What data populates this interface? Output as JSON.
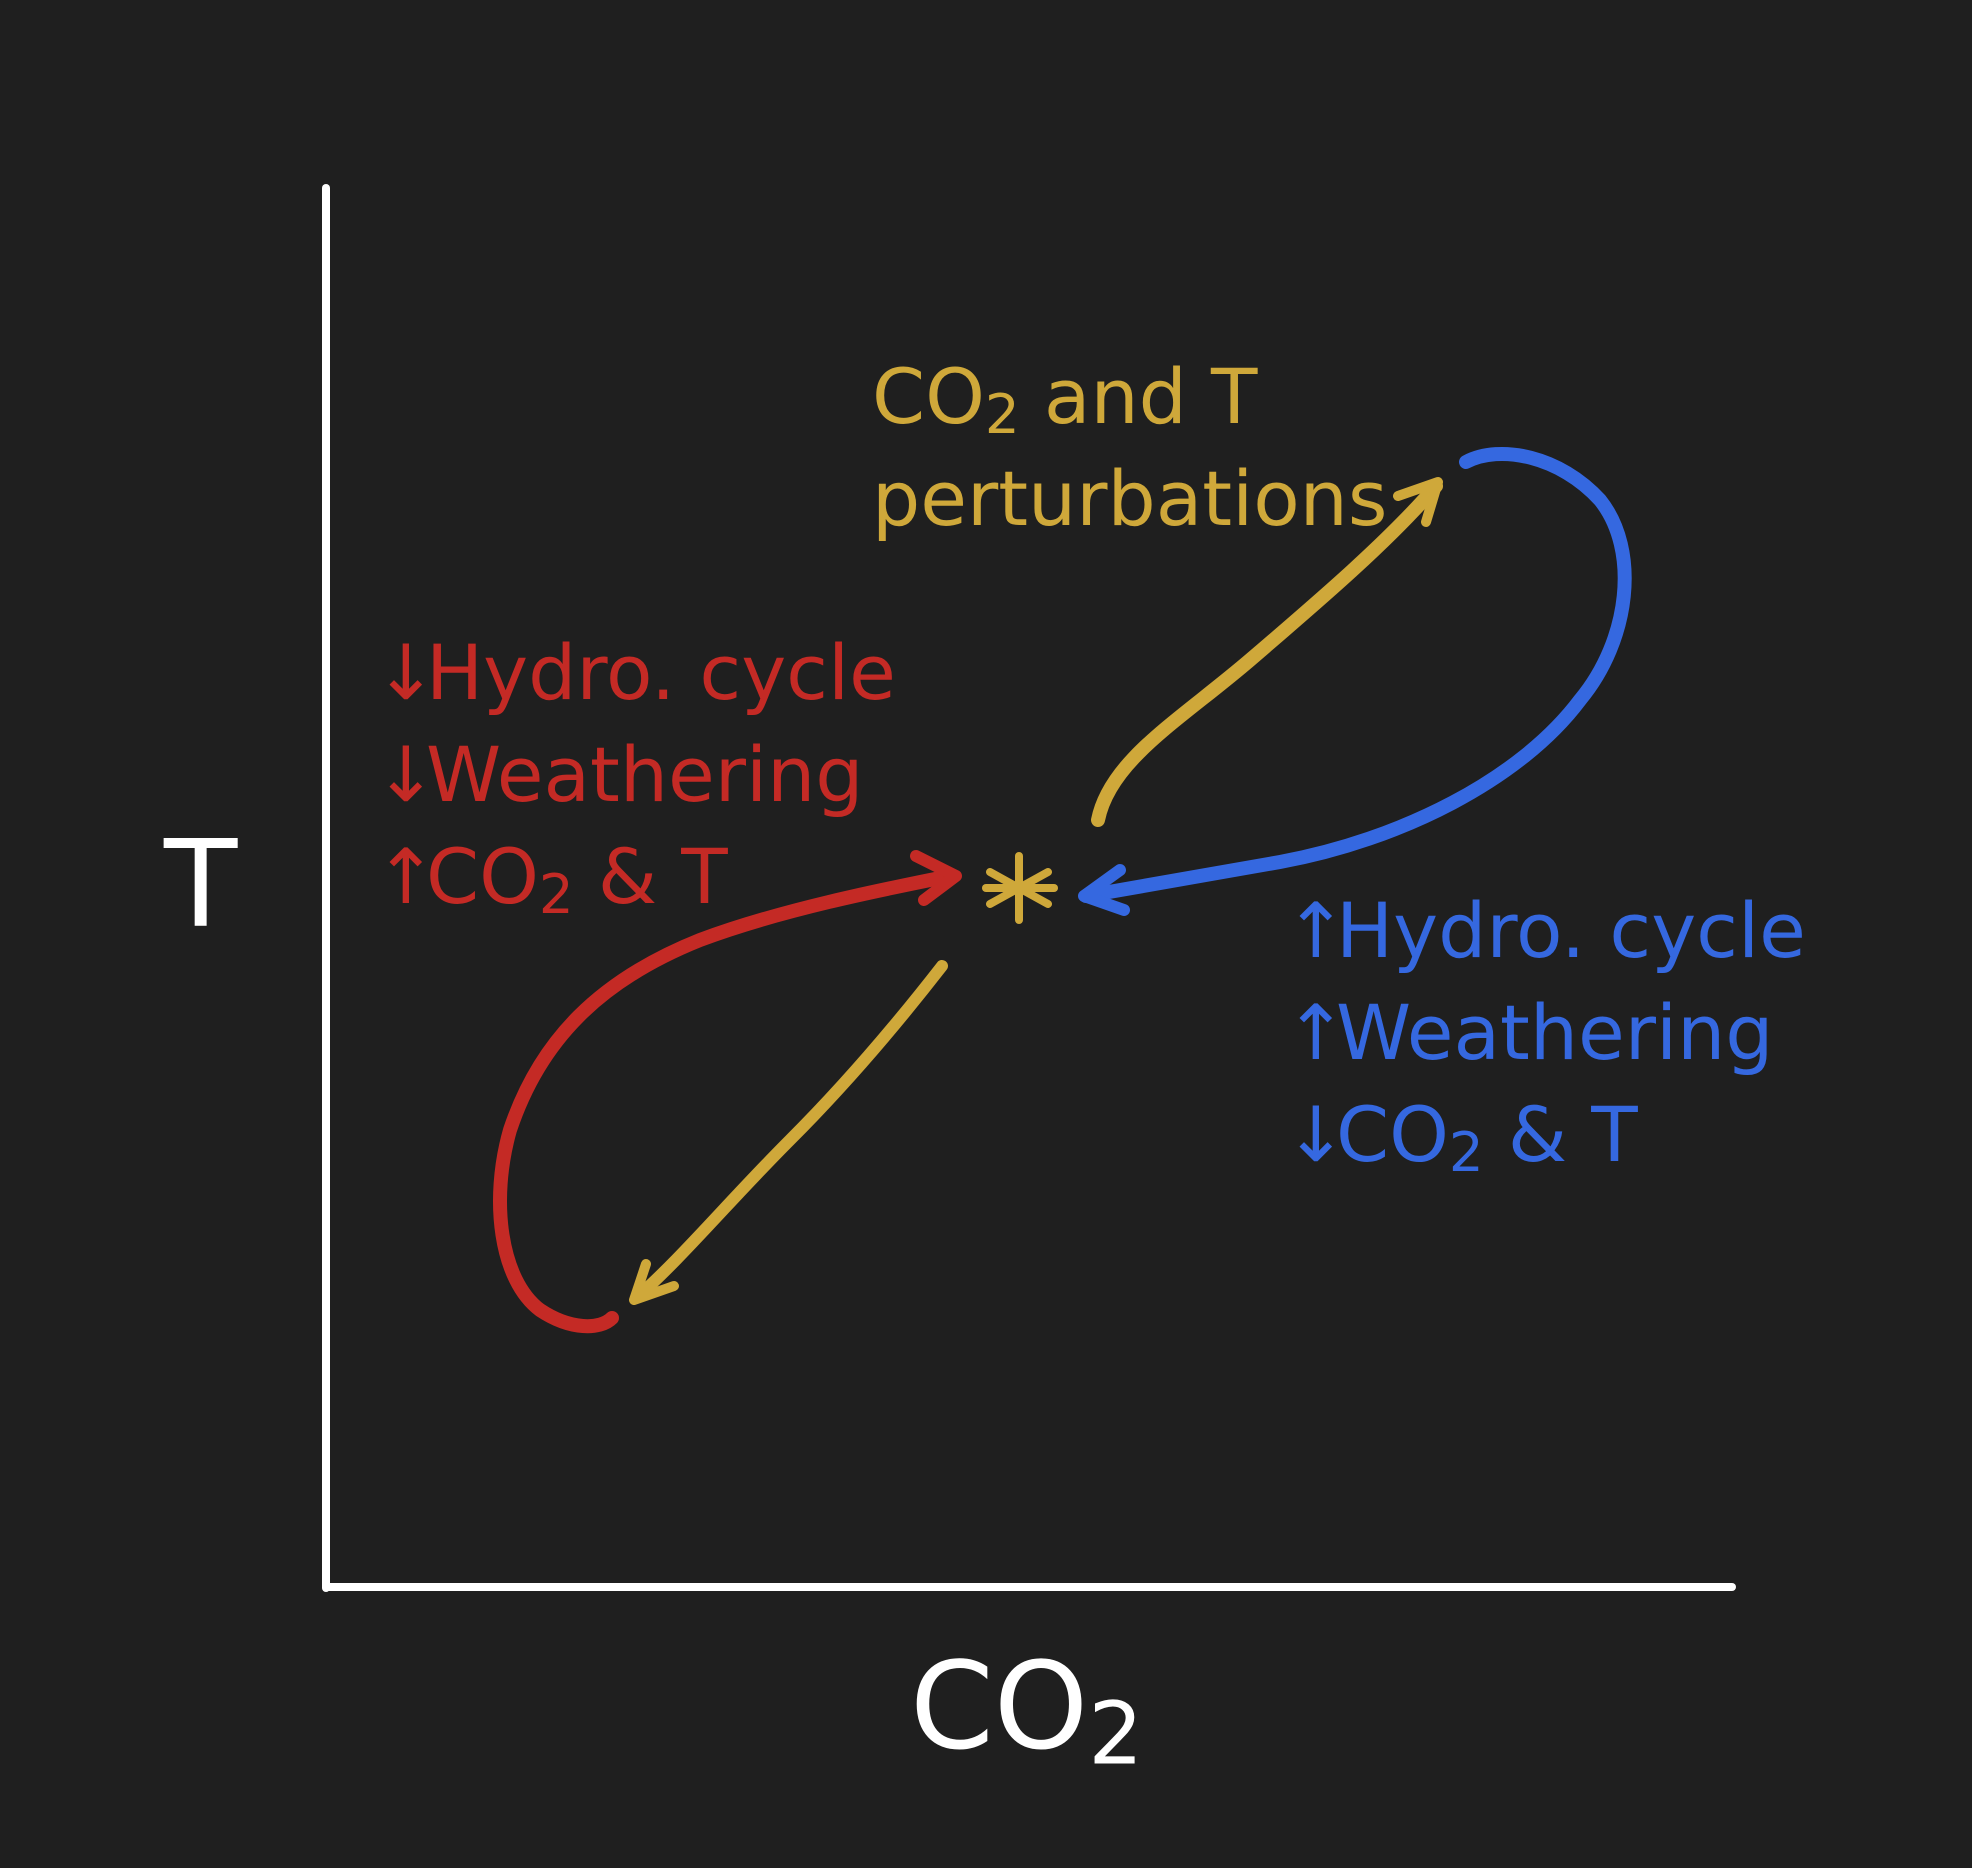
{
  "axes": {
    "y_label": "T",
    "x_label_main": "CO",
    "x_label_sub": "2"
  },
  "perturbation": {
    "line1_a": "CO",
    "line1_sub": "2",
    "line1_b": " and T",
    "line2": "perturbations"
  },
  "low_branch": {
    "items": [
      {
        "arrow": "↓",
        "text": "Hydro. cycle"
      },
      {
        "arrow": "↓",
        "text": "Weathering"
      },
      {
        "arrow": "↑",
        "text_a": "CO",
        "text_sub": "2",
        "text_b": " & T"
      }
    ]
  },
  "high_branch": {
    "items": [
      {
        "arrow": "↑",
        "text": "Hydro. cycle"
      },
      {
        "arrow": "↑",
        "text": "Weathering"
      },
      {
        "arrow": "↓",
        "text_a": "CO",
        "text_sub": "2",
        "text_b": " & T"
      }
    ]
  },
  "equilibrium_symbol": "*",
  "colors": {
    "background": "#1f1f1f",
    "axes": "#ffffff",
    "perturbation": "#cfa83a",
    "low_branch": "#c42a25",
    "high_branch": "#3568e0"
  }
}
